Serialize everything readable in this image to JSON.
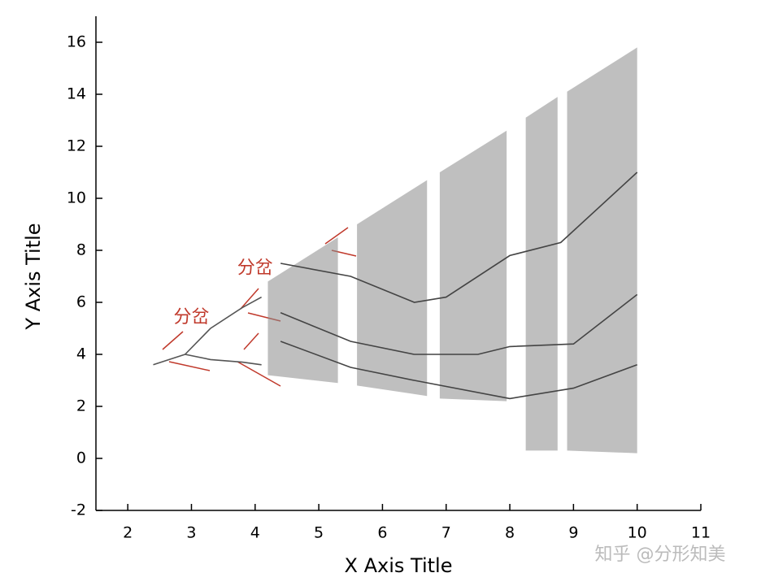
{
  "chart_data": {
    "type": "line",
    "xlabel": "X Axis Title",
    "ylabel": "Y Axis Title",
    "xlim": [
      1.5,
      11
    ],
    "ylim": [
      -2,
      17
    ],
    "xticks": [
      2,
      3,
      4,
      5,
      6,
      7,
      8,
      9,
      10,
      11
    ],
    "yticks": [
      -2,
      0,
      2,
      4,
      6,
      8,
      10,
      12,
      14,
      16
    ],
    "band": {
      "color": "#8a8a8a",
      "x": [
        4.2,
        5.3,
        null,
        5.6,
        6.7,
        null,
        6.9,
        7.95,
        null,
        8.25,
        8.75,
        null,
        8.9,
        10
      ],
      "upper": [
        6.8,
        8.5,
        null,
        9.0,
        10.7,
        null,
        11.0,
        12.6,
        null,
        13.1,
        13.9,
        null,
        14.1,
        15.8
      ],
      "lower": [
        3.2,
        2.9,
        null,
        2.8,
        2.4,
        null,
        2.3,
        2.2,
        null,
        0.3,
        0.3,
        null,
        0.3,
        0.2
      ]
    },
    "series": [
      {
        "color": "#555555",
        "x": [
          2.4,
          2.9
        ],
        "values": [
          3.6,
          4.0
        ]
      },
      {
        "color": "#555555",
        "x": [
          2.9,
          3.3,
          3.8,
          4.1
        ],
        "values": [
          4.0,
          5.0,
          5.8,
          6.2
        ]
      },
      {
        "color": "#555555",
        "x": [
          2.9,
          3.3,
          3.8,
          4.1
        ],
        "values": [
          4.0,
          3.8,
          3.7,
          3.6
        ]
      },
      {
        "color": "#444444",
        "x": [
          4.4,
          5.5,
          6.5,
          7,
          8,
          8.8,
          10
        ],
        "values": [
          7.5,
          7.0,
          6.0,
          6.2,
          7.8,
          8.3,
          11
        ]
      },
      {
        "color": "#444444",
        "x": [
          4.4,
          5.5,
          6.5,
          7.5,
          8,
          9,
          10
        ],
        "values": [
          5.6,
          4.5,
          4.0,
          4.0,
          4.3,
          4.4,
          6.3
        ]
      },
      {
        "color": "#444444",
        "x": [
          4.4,
          5.5,
          6.5,
          8,
          9,
          10
        ],
        "values": [
          4.5,
          3.5,
          3.0,
          2.3,
          2.7,
          3.6
        ]
      }
    ],
    "annotations": [
      {
        "text": "分岔",
        "x": 3.0,
        "y": 5.4,
        "color": "#c0392b"
      },
      {
        "text": "分岔",
        "x": 4.0,
        "y": 7.3,
        "color": "#c0392b"
      }
    ],
    "watermark": "知乎 @分形知美"
  }
}
